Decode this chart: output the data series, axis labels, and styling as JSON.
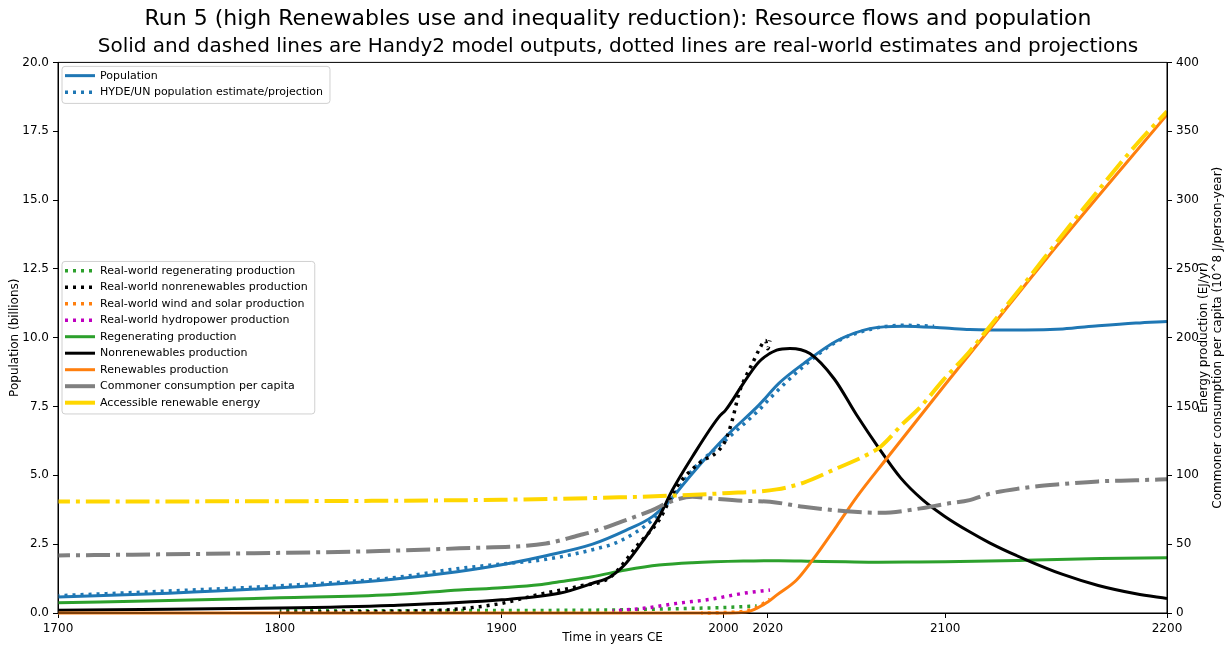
{
  "chart_data": {
    "type": "line",
    "title": "Run 5 (high Renewables use and inequality reduction): Resource flows and population",
    "subtitle": "Solid and dashed lines are Handy2 model outputs, dotted lines are real-world estimates and projections",
    "xlabel": "Time in years CE",
    "ylabel": "Population (billions)",
    "y2label": "Energy production (EJ/yr)\nCommoner consumption per capita (10^8 J/person-year)",
    "xlim": [
      1700,
      2200
    ],
    "xticks": [
      1700,
      1800,
      1900,
      2000,
      2020,
      2100,
      2200
    ],
    "ylim": [
      0,
      20
    ],
    "yticks": [
      {
        "value": 0,
        "label": "0.0"
      },
      2.5,
      {
        "value": 5,
        "label": "5.0"
      },
      7.5,
      {
        "value": 10,
        "label": "10.0"
      },
      12.5,
      {
        "value": 15,
        "label": "15.0"
      },
      17.5,
      {
        "value": 20,
        "label": "20.0"
      }
    ],
    "y2lim": [
      0,
      400
    ],
    "y2ticks": [
      0,
      50,
      100,
      150,
      200,
      250,
      300,
      350,
      400
    ],
    "grid": false,
    "legend": "top left",
    "series": [
      {
        "name": "Population",
        "color": "#1f77b4",
        "line_style": "solid",
        "x": [
          1700,
          1750,
          1800,
          1850,
          1880,
          1900,
          1920,
          1941,
          1956,
          1968,
          1976,
          1986,
          2001,
          2016,
          2025,
          2036,
          2051,
          2066,
          2081,
          2100,
          2111,
          2136,
          2153,
          2169,
          2186,
          2200
        ],
        "values": [
          0.58,
          0.72,
          0.92,
          1.22,
          1.5,
          1.75,
          2.08,
          2.5,
          3.0,
          3.5,
          4.1,
          5.07,
          6.4,
          7.55,
          8.34,
          9.05,
          9.88,
          10.33,
          10.42,
          10.35,
          10.3,
          10.28,
          10.32,
          10.43,
          10.53,
          10.59
        ]
      },
      {
        "name": "HYDE/UN population estimate/projection",
        "color": "#1f77b4",
        "line_style": "dotted",
        "x": [
          1700,
          1750,
          1800,
          1850,
          1881,
          1900,
          1920,
          1941,
          1953,
          1968,
          1976,
          1986,
          2001,
          2016,
          2021,
          2036,
          2051,
          2066,
          2081,
          2095
        ],
        "values": [
          0.63,
          0.8,
          0.99,
          1.27,
          1.62,
          1.78,
          1.95,
          2.3,
          2.6,
          3.38,
          4.1,
          5.19,
          6.28,
          7.37,
          7.8,
          8.95,
          9.85,
          10.3,
          10.45,
          10.42
        ]
      },
      {
        "name": "Real-world regenerating production",
        "color": "#2ca02c",
        "line_style": "dotted",
        "axis": "y2",
        "x": [
          1800,
          1850,
          1900,
          1950,
          1970,
          1986,
          2000,
          2009,
          2015
        ],
        "values": [
          1.7,
          1.7,
          1.8,
          2.2,
          2.8,
          3.4,
          4.0,
          4.6,
          5.1
        ]
      },
      {
        "name": "Real-world nonrenewables production",
        "color": "#000000",
        "line_style": "dotted",
        "axis": "y2",
        "x": [
          1800,
          1850,
          1875,
          1890,
          1900,
          1917,
          1935,
          1949,
          1962,
          1971,
          1979,
          1989,
          1998,
          2001,
          2004,
          2007,
          2010,
          2013,
          2016,
          2019,
          2020,
          2021
        ],
        "values": [
          0.5,
          1.2,
          2.2,
          4.6,
          7,
          13.5,
          19.5,
          26,
          50.6,
          67.5,
          91.7,
          108.7,
          118.3,
          125.6,
          140,
          159.5,
          171.5,
          181,
          191,
          198,
          192,
          198
        ]
      },
      {
        "name": "Real-world wind and solar production",
        "color": "#ff7f0e",
        "line_style": "dotted",
        "axis": "y2",
        "x": [
          1990,
          2000,
          2010,
          2015,
          2021
        ],
        "values": [
          0,
          0.3,
          1.5,
          4,
          10
        ]
      },
      {
        "name": "Real-world hydropower production",
        "color": "#bf00bf",
        "line_style": "dotted",
        "axis": "y2",
        "x": [
          1950,
          1964,
          1979,
          1994,
          2009,
          2021
        ],
        "values": [
          1.5,
          3.4,
          7,
          9.9,
          14.3,
          16.7
        ]
      },
      {
        "name": "Regenerating production",
        "color": "#2ca02c",
        "line_style": "solid",
        "axis": "y2",
        "x": [
          1700,
          1750,
          1800,
          1850,
          1881,
          1900,
          1917,
          1926,
          1941,
          1956,
          1971,
          1986,
          2009,
          2025,
          2040,
          2055,
          2070,
          2085,
          2100,
          2136,
          2170,
          2200
        ],
        "values": [
          7.4,
          9,
          11,
          13.2,
          16.7,
          18.4,
          20.5,
          22.7,
          26.4,
          31.2,
          34.8,
          36.5,
          37.7,
          38,
          37.6,
          37.2,
          36.9,
          37,
          37.2,
          38.3,
          39.6,
          40.1
        ]
      },
      {
        "name": "Nonrenewables production",
        "color": "#000000",
        "line_style": "solid",
        "axis": "y2",
        "x": [
          1700,
          1750,
          1800,
          1850,
          1900,
          1926,
          1941,
          1949,
          1956,
          1964,
          1971,
          1977,
          1986,
          1998,
          2001,
          2009,
          2016,
          2024,
          2030,
          2039,
          2050,
          2060,
          2070,
          2080,
          2090,
          2100,
          2111,
          2120,
          2136,
          2153,
          2169,
          2186,
          2200
        ],
        "values": [
          2,
          2.8,
          3.6,
          5.5,
          9.6,
          14.3,
          21.6,
          26.4,
          36,
          53,
          69.9,
          89.3,
          113.5,
          142.5,
          147.4,
          166.8,
          182.4,
          191,
          192.2,
          188.5,
          170,
          144,
          120,
          98,
          82,
          70,
          59,
          51,
          39,
          28,
          20,
          14,
          10.6
        ]
      },
      {
        "name": "Renewables production",
        "color": "#ff7f0e",
        "line_style": "solid",
        "axis": "y2",
        "x": [
          1700,
          2000,
          2010,
          2020,
          2024,
          2033,
          2040,
          2051,
          2060,
          2073,
          2100,
          2111,
          2150,
          2200
        ],
        "values": [
          0,
          0,
          0.5,
          8,
          13,
          24,
          38,
          63,
          84,
          111,
          166,
          188,
          266,
          362
        ]
      },
      {
        "name": "Commoner consumption per capita",
        "color": "#808080",
        "line_style": "dashdot",
        "axis": "y2",
        "x": [
          1700,
          1800,
          1845,
          1881,
          1920,
          1935,
          1941,
          1956,
          1968,
          1976,
          1986,
          1994,
          2009,
          2021,
          2036,
          2059,
          2071,
          2089,
          2100,
          2111,
          2120,
          2136,
          2153,
          2169,
          2186,
          2200
        ],
        "values": [
          41.8,
          43.7,
          45,
          47,
          50.5,
          56.5,
          59,
          67.5,
          74.8,
          80.8,
          84.4,
          83.3,
          81.5,
          80.8,
          77.2,
          73.5,
          72.8,
          76,
          79.2,
          82,
          86.6,
          91,
          93.7,
          95.6,
          96.4,
          97.2
        ]
      },
      {
        "name": "Accessible renewable energy",
        "color": "#ffd700",
        "line_style": "dashdot",
        "axis": "y2",
        "x": [
          1700,
          1800,
          1845,
          1900,
          1953,
          1976,
          2000,
          2024,
          2036,
          2051,
          2063,
          2071,
          2081,
          2089,
          2099,
          2111,
          2120,
          2136,
          2153,
          2169,
          2186,
          2200
        ],
        "values": [
          81,
          81.2,
          81.5,
          82.3,
          84,
          85.2,
          87,
          89.8,
          94.6,
          105,
          113.5,
          121,
          137.7,
          150,
          169,
          190,
          208,
          240,
          275,
          307,
          340,
          364.4
        ]
      }
    ]
  }
}
